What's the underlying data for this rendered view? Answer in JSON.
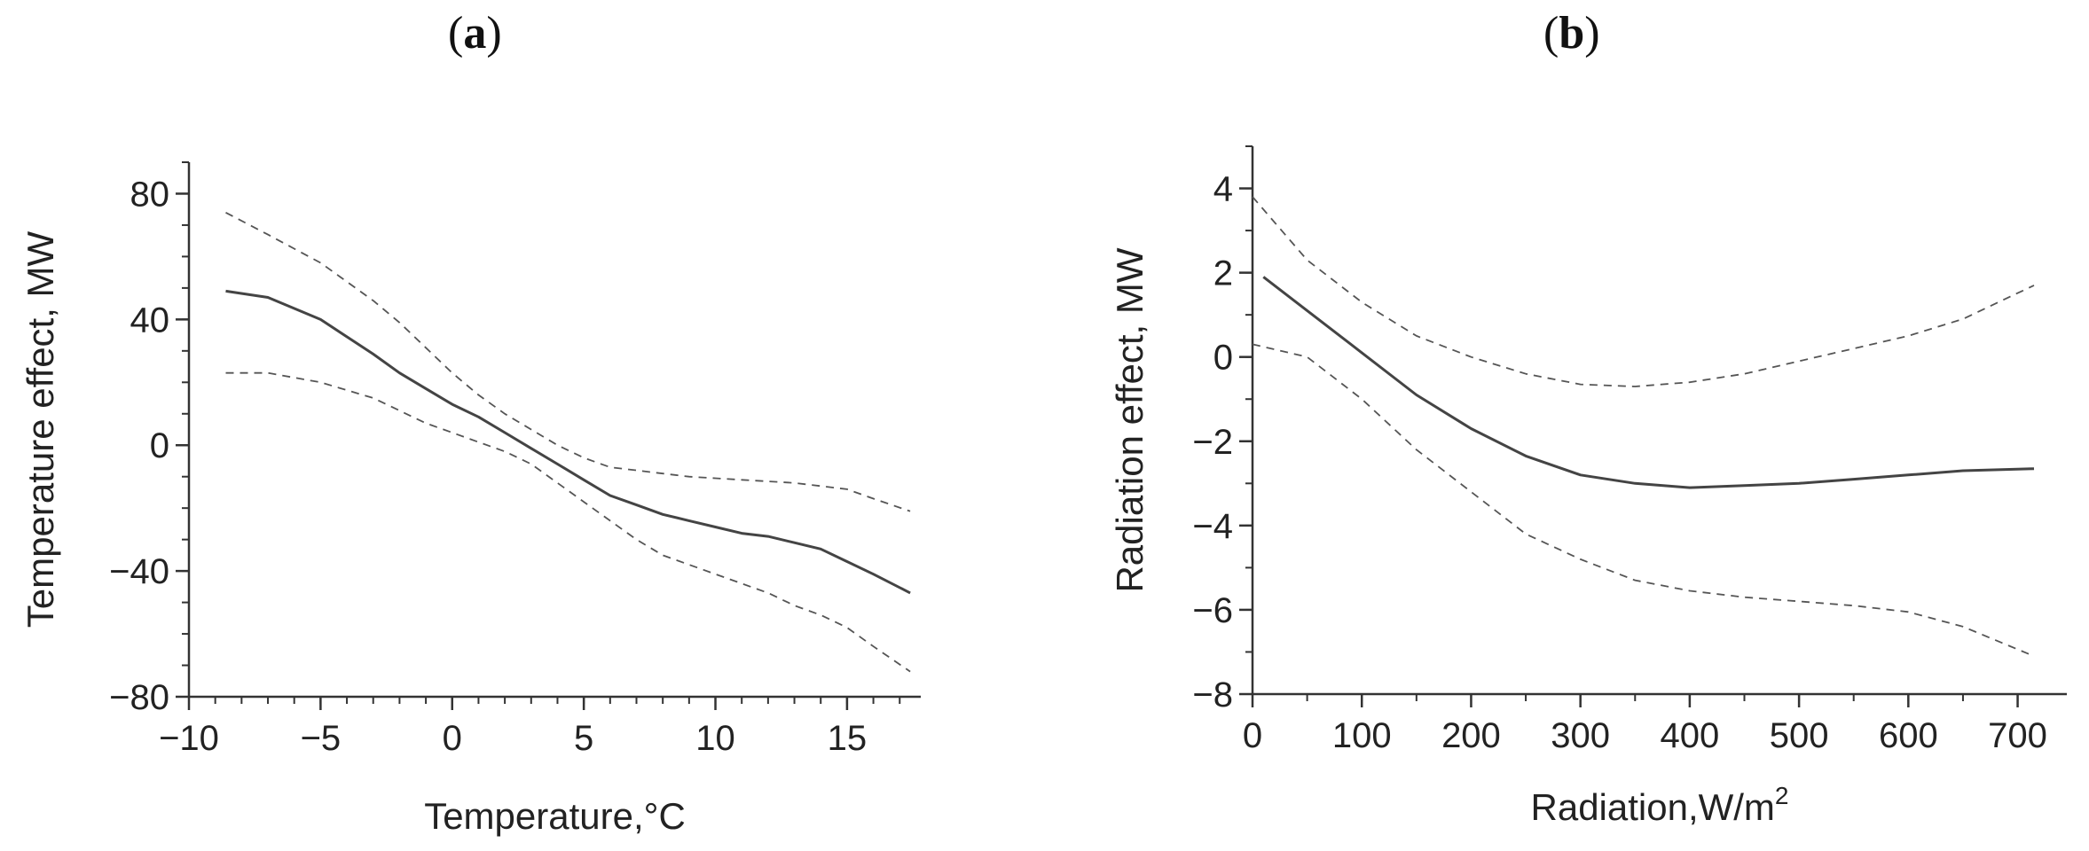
{
  "chart_data": [
    {
      "panel_label": "a",
      "type": "line",
      "xlabel": "Temperature,°C",
      "ylabel": "Temperature effect, MW",
      "xlim": [
        -10,
        17.8
      ],
      "ylim": [
        -80,
        90
      ],
      "xticks": [
        -10,
        -5,
        0,
        5,
        10,
        15
      ],
      "xtick_labels": [
        "−10",
        "−5",
        "0",
        "5",
        "10",
        "15"
      ],
      "yticks": [
        -80,
        -40,
        0,
        40,
        80
      ],
      "ytick_labels": [
        "−80",
        "−40",
        "0",
        "40",
        "80"
      ],
      "x_minor_step": 1,
      "y_minor_step": 10,
      "series": [
        {
          "name": "estimate",
          "style": "solid",
          "x": [
            -8.6,
            -7,
            -5,
            -3,
            -2,
            -1,
            0,
            1,
            2,
            3,
            4,
            5,
            6,
            7,
            8,
            9,
            10,
            11,
            12,
            13,
            14,
            15,
            16,
            17.4
          ],
          "y": [
            49,
            47,
            40,
            29,
            23,
            18,
            13,
            9,
            4,
            -1,
            -6,
            -11,
            -16,
            -19,
            -22,
            -24,
            -26,
            -28,
            -29,
            -31,
            -33,
            -37,
            -41,
            -47
          ]
        },
        {
          "name": "upper bound",
          "style": "dashed",
          "x": [
            -8.6,
            -7,
            -5,
            -3,
            -2,
            -1,
            0,
            1,
            2,
            3,
            4,
            5,
            6,
            7,
            8,
            9,
            10,
            11,
            12,
            13,
            14,
            15,
            16,
            17.4
          ],
          "y": [
            74,
            67,
            58,
            46,
            39,
            31,
            23,
            16,
            10,
            5,
            0,
            -4,
            -7,
            -8,
            -9,
            -10,
            -10.5,
            -11,
            -11.5,
            -12,
            -13,
            -14,
            -17,
            -21
          ]
        },
        {
          "name": "lower bound",
          "style": "dashed",
          "x": [
            -8.6,
            -7,
            -5,
            -3,
            -2,
            -1,
            0,
            1,
            2,
            3,
            4,
            5,
            6,
            7,
            8,
            9,
            10,
            11,
            12,
            13,
            14,
            15,
            16,
            17.4
          ],
          "y": [
            23,
            23,
            20,
            15,
            11,
            7,
            4,
            1,
            -2,
            -6,
            -12,
            -18,
            -24,
            -30,
            -35,
            -38,
            -41,
            -44,
            -47,
            -51,
            -54,
            -58,
            -64,
            -72
          ]
        }
      ]
    },
    {
      "panel_label": "b",
      "type": "line",
      "xlabel": "Radiation,W/m",
      "xlabel_sup": "2",
      "ylabel": "Radiation effect, MW",
      "xlim": [
        0,
        745
      ],
      "ylim": [
        -8,
        5
      ],
      "xticks": [
        0,
        100,
        200,
        300,
        400,
        500,
        600,
        700
      ],
      "xtick_labels": [
        "0",
        "100",
        "200",
        "300",
        "400",
        "500",
        "600",
        "700"
      ],
      "yticks": [
        -8,
        -6,
        -4,
        -2,
        0,
        2,
        4
      ],
      "ytick_labels": [
        "−8",
        "−6",
        "−4",
        "−2",
        "0",
        "2",
        "4"
      ],
      "x_minor_step": 50,
      "y_minor_step": 1,
      "series": [
        {
          "name": "estimate",
          "style": "solid",
          "x": [
            10,
            50,
            100,
            150,
            200,
            250,
            300,
            350,
            400,
            450,
            500,
            550,
            600,
            650,
            715
          ],
          "y": [
            1.9,
            1.1,
            0.1,
            -0.9,
            -1.7,
            -2.35,
            -2.8,
            -3.0,
            -3.1,
            -3.05,
            -3.0,
            -2.9,
            -2.8,
            -2.7,
            -2.65
          ]
        },
        {
          "name": "upper bound",
          "style": "dashed",
          "x": [
            0,
            50,
            100,
            150,
            200,
            250,
            300,
            350,
            400,
            450,
            500,
            550,
            600,
            650,
            715
          ],
          "y": [
            3.8,
            2.3,
            1.3,
            0.5,
            0.0,
            -0.4,
            -0.65,
            -0.7,
            -0.6,
            -0.4,
            -0.1,
            0.2,
            0.5,
            0.9,
            1.7
          ]
        },
        {
          "name": "lower bound",
          "style": "dashed",
          "x": [
            0,
            50,
            100,
            150,
            200,
            250,
            300,
            350,
            400,
            450,
            500,
            550,
            600,
            650,
            715
          ],
          "y": [
            0.3,
            0.0,
            -1.0,
            -2.2,
            -3.2,
            -4.2,
            -4.8,
            -5.3,
            -5.55,
            -5.7,
            -5.8,
            -5.9,
            -6.05,
            -6.4,
            -7.1
          ]
        }
      ]
    }
  ]
}
